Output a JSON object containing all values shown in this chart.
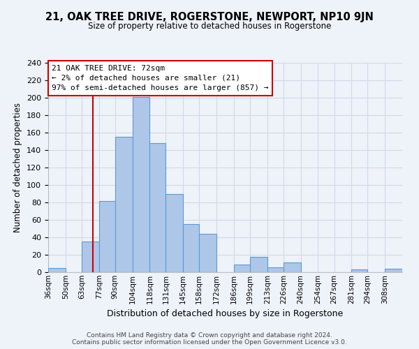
{
  "title": "21, OAK TREE DRIVE, ROGERSTONE, NEWPORT, NP10 9JN",
  "subtitle": "Size of property relative to detached houses in Rogerstone",
  "xlabel": "Distribution of detached houses by size in Rogerstone",
  "ylabel": "Number of detached properties",
  "bin_labels": [
    "36sqm",
    "50sqm",
    "63sqm",
    "77sqm",
    "90sqm",
    "104sqm",
    "118sqm",
    "131sqm",
    "145sqm",
    "158sqm",
    "172sqm",
    "186sqm",
    "199sqm",
    "213sqm",
    "226sqm",
    "240sqm",
    "254sqm",
    "267sqm",
    "281sqm",
    "294sqm",
    "308sqm"
  ],
  "bin_edges": [
    36,
    50,
    63,
    77,
    90,
    104,
    118,
    131,
    145,
    158,
    172,
    186,
    199,
    213,
    226,
    240,
    254,
    267,
    281,
    294,
    308,
    322
  ],
  "bar_heights": [
    5,
    0,
    35,
    82,
    155,
    201,
    148,
    90,
    55,
    44,
    0,
    9,
    18,
    6,
    11,
    0,
    0,
    0,
    3,
    0,
    4
  ],
  "bar_color": "#aec6e8",
  "bar_edge_color": "#5b9bd5",
  "vline_x": 72,
  "vline_color": "#cc0000",
  "ylim": [
    0,
    240
  ],
  "yticks": [
    0,
    20,
    40,
    60,
    80,
    100,
    120,
    140,
    160,
    180,
    200,
    220,
    240
  ],
  "annotation_title": "21 OAK TREE DRIVE: 72sqm",
  "annotation_line1": "← 2% of detached houses are smaller (21)",
  "annotation_line2": "97% of semi-detached houses are larger (857) →",
  "annotation_box_color": "#ffffff",
  "annotation_box_edge": "#cc0000",
  "footer_line1": "Contains HM Land Registry data © Crown copyright and database right 2024.",
  "footer_line2": "Contains public sector information licensed under the Open Government Licence v3.0.",
  "background_color": "#eef2f9",
  "grid_color": "#d0d8e8"
}
